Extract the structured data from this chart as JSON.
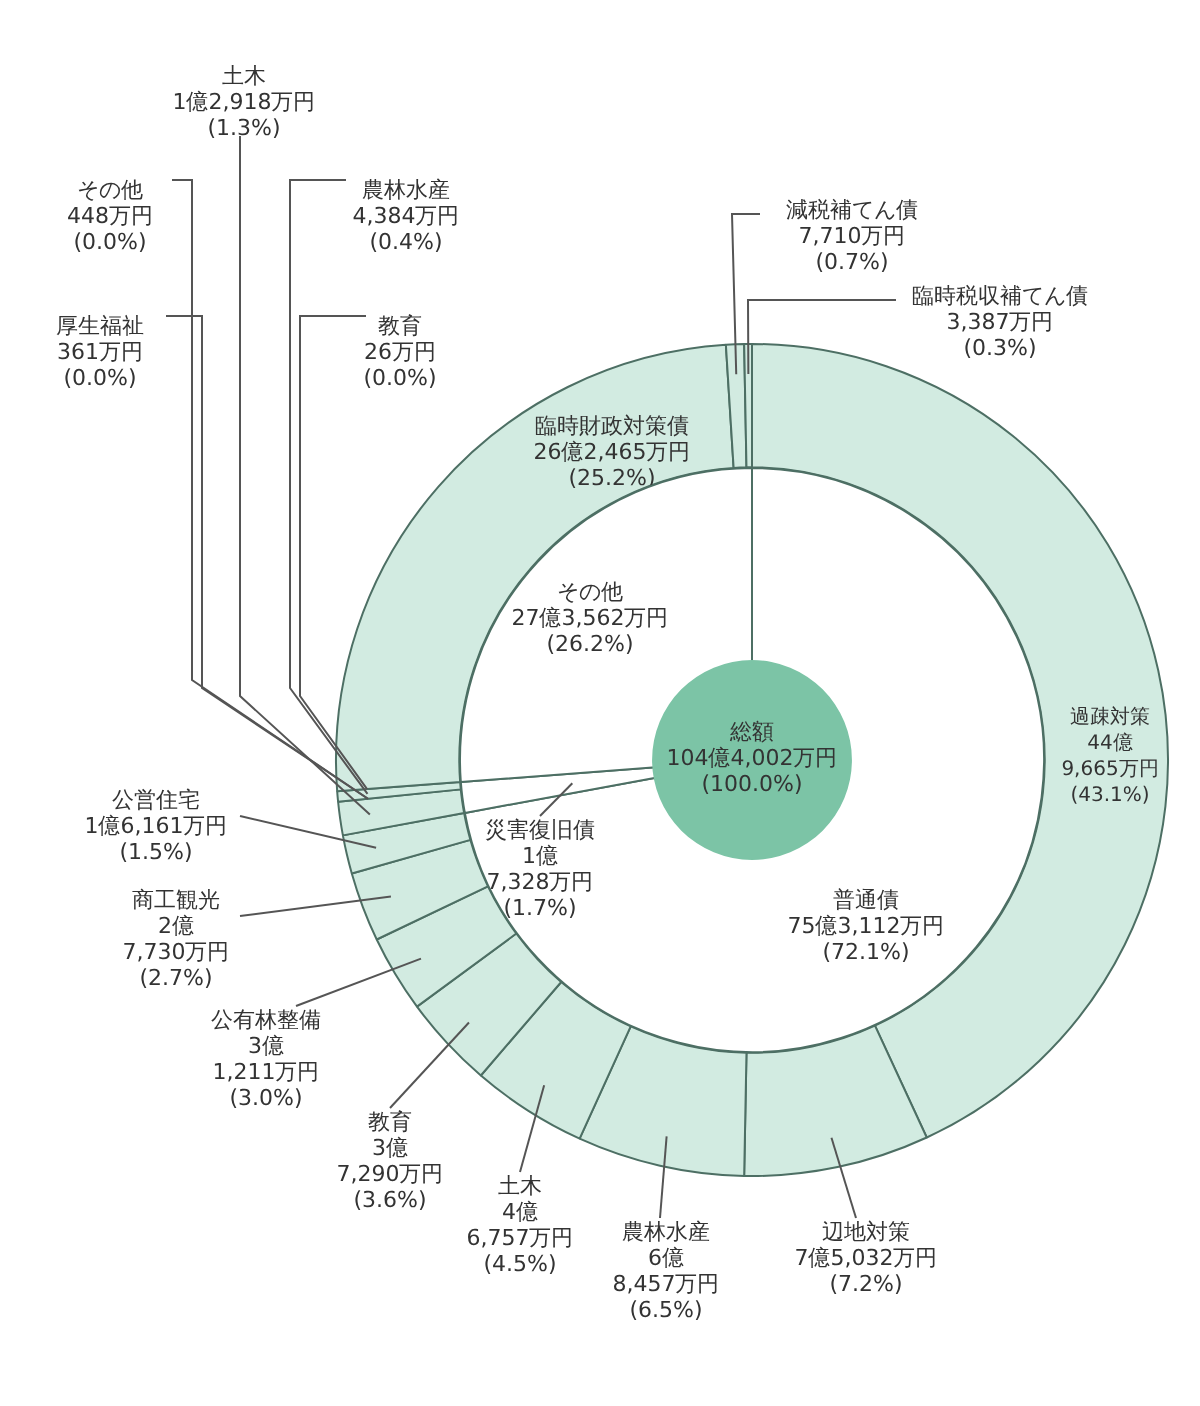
{
  "chart_data": [
    {
      "type": "pie",
      "categories": [
        "総額"
      ],
      "values": [
        100.0
      ],
      "colors": [
        "#7cc4a6"
      ],
      "value_labels": [
        "104億4,002万円\n(100.0%)"
      ]
    },
    {
      "type": "donut",
      "categories": [
        "普通債",
        "災害復旧債",
        "その他"
      ],
      "values": [
        72.1,
        1.7,
        26.2
      ],
      "colors": [
        "#ffffff",
        "#ffffff",
        "#ffffff"
      ],
      "value_labels": [
        "75億3,112万円\n(72.1%)",
        "1億\n7,328万円\n(1.7%)",
        "27億3,562万円\n(26.2%)"
      ]
    },
    {
      "type": "donut",
      "categories": [
        "過疎対策",
        "辺地対策",
        "農林水産",
        "土木",
        "教育",
        "公有林整備",
        "商工観光",
        "公営住宅",
        "土木",
        "その他",
        "厚生福祉",
        "農林水産",
        "教育",
        "臨時財政対策債",
        "減税補てん債",
        "臨時税収補てん債"
      ],
      "values": [
        43.1,
        7.2,
        6.5,
        4.5,
        3.6,
        3.0,
        2.7,
        1.5,
        1.3,
        0.0,
        0.0,
        0.4,
        0.0,
        25.2,
        0.7,
        0.3
      ],
      "colors": [
        "#d2ebe1",
        "#d2ebe1",
        "#d2ebe1",
        "#d2ebe1",
        "#d2ebe1",
        "#d2ebe1",
        "#d2ebe1",
        "#d2ebe1",
        "#d2ebe1",
        "#d2ebe1",
        "#d2ebe1",
        "#d2ebe1",
        "#d2ebe1",
        "#d2ebe1",
        "#d2ebe1",
        "#d2ebe1"
      ],
      "value_labels": [
        "44億\n9,665万円\n(43.1%)",
        "7億5,032万円\n(7.2%)",
        "6億\n8,457万円\n(6.5%)",
        "4億\n6,757万円\n(4.5%)",
        "3億\n7,290万円\n(3.6%)",
        "3億\n1,211万円\n(3.0%)",
        "2億\n7,730万円\n(2.7%)",
        "1億6,161万円\n(1.5%)",
        "1億2,918万円\n(1.3%)",
        "448万円\n(0.0%)",
        "361万円\n(0.0%)",
        "4,384万円\n(0.4%)",
        "26万円\n(0.0%)",
        "26億2,465万円\n(25.2%)",
        "7,710万円\n(0.7%)",
        "3,387万円\n(0.3%)"
      ]
    }
  ]
}
